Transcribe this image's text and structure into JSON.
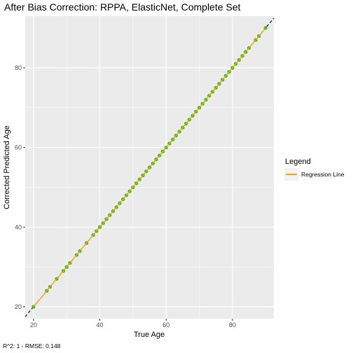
{
  "chart_data": {
    "type": "scatter",
    "title": "After Bias Correction: RPPA, ElasticNet, Complete Set",
    "xlabel": "True Age",
    "ylabel": "Corrected Predicted Age",
    "xlim": [
      17.5,
      92.5
    ],
    "ylim": [
      17.0,
      93.0
    ],
    "xticks": [
      20,
      40,
      60,
      80
    ],
    "yticks": [
      20,
      40,
      60,
      80
    ],
    "grid": true,
    "legend": {
      "title": "Legend",
      "placement": "right",
      "entries": [
        {
          "label": "Regression Line",
          "color": "#FFA500"
        }
      ]
    },
    "caption": "R^2: 1 - RMSE: 0.148",
    "colors": {
      "points": "#22C222",
      "regression": "#FFA500",
      "identity": "#000000",
      "panel": "#EBEBEB",
      "grid": "#FFFFFF"
    },
    "identity_line": {
      "slope": 1,
      "intercept": 0,
      "style": "dashed"
    },
    "regression_line": {
      "x": [
        20,
        90
      ],
      "y": [
        20,
        90
      ]
    },
    "points": {
      "x": [
        20,
        24,
        25,
        27,
        29,
        30,
        31,
        33,
        34,
        36,
        38,
        39,
        40,
        41,
        42,
        43,
        44,
        45,
        46,
        47,
        48,
        49,
        50,
        51,
        52,
        53,
        54,
        55,
        56,
        57,
        58,
        59,
        60,
        61,
        62,
        63,
        64,
        65,
        66,
        67,
        68,
        69,
        70,
        71,
        72,
        73,
        74,
        75,
        76,
        77,
        78,
        79,
        80,
        81,
        82,
        83,
        84,
        85,
        87,
        88,
        90
      ],
      "y": [
        20,
        24,
        25,
        27,
        29,
        30,
        31,
        33,
        34,
        36,
        38,
        39,
        40,
        41,
        42,
        43,
        44,
        45,
        46,
        47,
        48,
        49,
        50,
        51,
        52,
        53,
        54,
        55,
        56,
        57,
        58,
        59,
        60,
        61,
        62,
        63,
        64,
        65,
        66,
        67,
        68,
        69,
        70,
        71,
        72,
        73,
        74,
        75,
        76,
        77,
        78,
        79,
        80,
        81,
        82,
        83,
        84,
        85,
        87,
        88,
        90
      ]
    }
  }
}
